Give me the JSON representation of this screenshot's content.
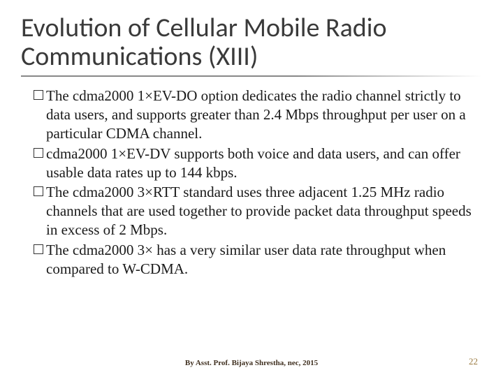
{
  "title": "Evolution of Cellular Mobile Radio Communications (XIII)",
  "title_fontsize": 38,
  "title_color": "#3a3a3a",
  "underline_color_start": "#888888",
  "bullets": [
    "The cdma2000 1×EV-DO option dedicates the radio channel strictly to data users, and supports greater than 2.4 Mbps throughput per user on a particular CDMA channel.",
    "cdma2000 1×EV-DV supports both voice and data users, and can offer usable data rates up to 144 kbps.",
    "The cdma2000 3×RTT standard uses three adjacent 1.25 MHz radio channels that are used together to provide packet data throughput speeds in excess of 2 Mbps.",
    " The cdma2000 3× has a very similar user data rate throughput when compared to W-CDMA."
  ],
  "body_fontsize": 21,
  "body_color": "#1a1a1a",
  "footer": "By Asst. Prof. Bijaya Shrestha, nec, 2015",
  "footer_fontsize": 11,
  "footer_color": "#403020",
  "page_number": "22",
  "page_number_fontsize": 13,
  "page_number_color": "#9a7a40",
  "background_color": "#ffffff"
}
